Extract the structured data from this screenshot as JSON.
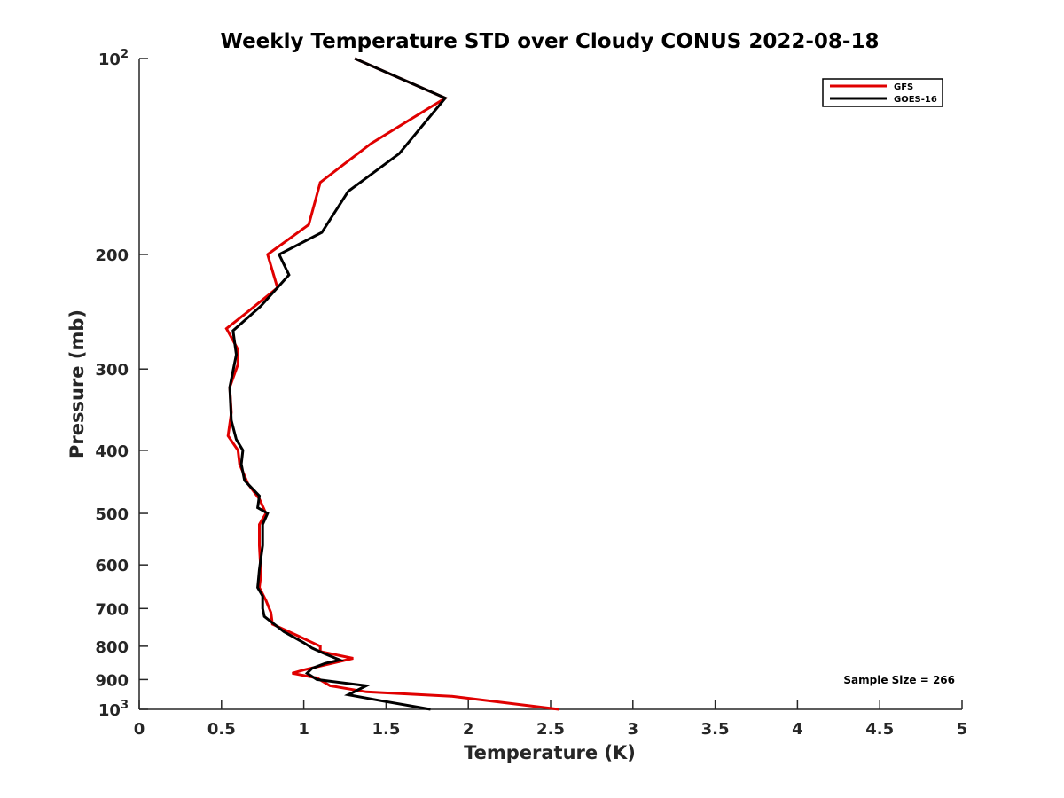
{
  "chart_data": {
    "type": "line",
    "title": "Weekly Temperature STD over Cloudy CONUS 2022-08-18",
    "xlabel": "Temperature (K)",
    "ylabel": "Pressure (mb)",
    "xlim": [
      0,
      5
    ],
    "ylim": [
      100,
      1000
    ],
    "yscale": "log",
    "y_reversed": true,
    "grid": false,
    "xticks": [
      0,
      0.5,
      1,
      1.5,
      2,
      2.5,
      3,
      3.5,
      4,
      4.5,
      5
    ],
    "xtick_labels": [
      "0",
      "0.5",
      "1",
      "1.5",
      "2",
      "2.5",
      "3",
      "3.5",
      "4",
      "4.5",
      "5"
    ],
    "yticks": [
      100,
      200,
      300,
      400,
      500,
      600,
      700,
      800,
      900,
      1000
    ],
    "ytick_labels": [
      {
        "base": "10",
        "exp": "2"
      },
      {
        "text": "200"
      },
      {
        "text": "300"
      },
      {
        "text": "400"
      },
      {
        "text": "500"
      },
      {
        "text": "600"
      },
      {
        "text": "700"
      },
      {
        "text": "800"
      },
      {
        "text": "900"
      },
      {
        "base": "10",
        "exp": "3"
      }
    ],
    "legend_position": "top-right",
    "annotation": "Sample Size = 266",
    "series": [
      {
        "name": "GFS",
        "color": "#e00000",
        "points": [
          [
            1.31,
            100
          ],
          [
            1.86,
            115
          ],
          [
            1.41,
            135
          ],
          [
            1.1,
            155
          ],
          [
            1.03,
            180
          ],
          [
            0.78,
            200
          ],
          [
            0.84,
            225
          ],
          [
            0.66,
            245
          ],
          [
            0.53,
            260
          ],
          [
            0.6,
            280
          ],
          [
            0.6,
            295
          ],
          [
            0.55,
            320
          ],
          [
            0.56,
            350
          ],
          [
            0.54,
            380
          ],
          [
            0.6,
            400
          ],
          [
            0.61,
            420
          ],
          [
            0.66,
            450
          ],
          [
            0.73,
            475
          ],
          [
            0.77,
            500
          ],
          [
            0.73,
            520
          ],
          [
            0.73,
            560
          ],
          [
            0.74,
            620
          ],
          [
            0.73,
            650
          ],
          [
            0.77,
            680
          ],
          [
            0.8,
            710
          ],
          [
            0.81,
            740
          ],
          [
            0.96,
            770
          ],
          [
            1.1,
            800
          ],
          [
            1.1,
            815
          ],
          [
            1.3,
            835
          ],
          [
            1.0,
            870
          ],
          [
            0.93,
            880
          ],
          [
            1.08,
            895
          ],
          [
            1.16,
            920
          ],
          [
            1.38,
            940
          ],
          [
            1.9,
            955
          ],
          [
            2.55,
            1000
          ]
        ]
      },
      {
        "name": "GOES-16",
        "color": "#000000",
        "points": [
          [
            1.31,
            100
          ],
          [
            1.86,
            115
          ],
          [
            1.58,
            140
          ],
          [
            1.27,
            160
          ],
          [
            1.11,
            185
          ],
          [
            0.85,
            200
          ],
          [
            0.91,
            215
          ],
          [
            0.74,
            240
          ],
          [
            0.57,
            262
          ],
          [
            0.59,
            285
          ],
          [
            0.55,
            320
          ],
          [
            0.56,
            360
          ],
          [
            0.59,
            385
          ],
          [
            0.63,
            400
          ],
          [
            0.62,
            420
          ],
          [
            0.64,
            445
          ],
          [
            0.73,
            470
          ],
          [
            0.72,
            490
          ],
          [
            0.78,
            500
          ],
          [
            0.75,
            520
          ],
          [
            0.75,
            560
          ],
          [
            0.73,
            610
          ],
          [
            0.72,
            650
          ],
          [
            0.75,
            670
          ],
          [
            0.75,
            700
          ],
          [
            0.76,
            720
          ],
          [
            0.88,
            760
          ],
          [
            1.0,
            790
          ],
          [
            1.05,
            805
          ],
          [
            1.12,
            820
          ],
          [
            1.22,
            840
          ],
          [
            1.13,
            850
          ],
          [
            1.05,
            865
          ],
          [
            1.02,
            880
          ],
          [
            1.08,
            900
          ],
          [
            1.38,
            920
          ],
          [
            1.27,
            950
          ],
          [
            1.47,
            970
          ],
          [
            1.77,
            1000
          ]
        ]
      }
    ]
  }
}
